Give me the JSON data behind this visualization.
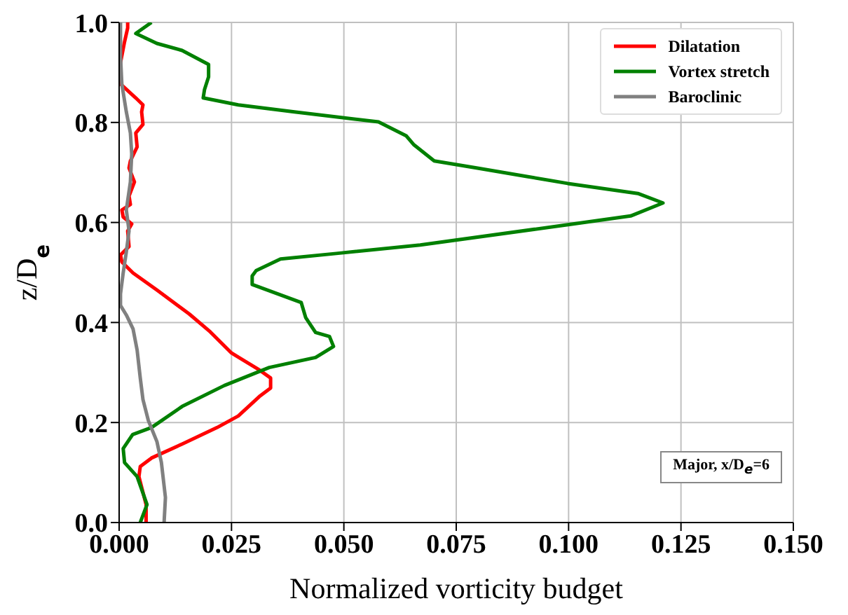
{
  "chart_data": {
    "type": "line",
    "xlabel": "Normalized vorticity budget",
    "ylabel": "z/D$_{e}$",
    "xlim": [
      0,
      0.15
    ],
    "ylim": [
      0,
      1
    ],
    "xticks": [
      {
        "value": 0,
        "label": "0.000"
      },
      0.025,
      {
        "value": 0.05,
        "label": "0.050"
      },
      0.075,
      {
        "value": 0.1,
        "label": "0.100"
      },
      0.125,
      {
        "value": 0.15,
        "label": "0.150"
      }
    ],
    "yticks": [
      {
        "value": 0,
        "label": "0.0"
      },
      0.2,
      0.4,
      0.6,
      0.8,
      {
        "value": 1,
        "label": "1.0"
      }
    ],
    "grid": true,
    "legend": "top right",
    "marker": "none",
    "line_style": "solid",
    "annotations": [
      "Major, x/D$_{e}$=6"
    ],
    "series": [
      {
        "name": "Dilatation",
        "color": "#ff0000",
        "x": [
          0.006,
          0.006,
          0.0044,
          0.0047,
          0.0072,
          0.014,
          0.0218,
          0.0265,
          0.0312,
          0.0337,
          0.0337,
          0.0312,
          0.025,
          0.0203,
          0.0156,
          0.0084,
          0.0031,
          0.0006,
          0.0003,
          0.0022,
          0.0019,
          0.0028,
          0.0009,
          0.0006,
          0.0025,
          0.0022,
          0.0034,
          0.0022,
          0.0025,
          0.004,
          0.0037,
          0.0053,
          0.005,
          0.0053,
          0.0037,
          0.0003,
          0.0003,
          0.0012,
          0.0019,
          0.0019
        ],
        "values": [
          0,
          0.036,
          0.092,
          0.112,
          0.129,
          0.157,
          0.19,
          0.213,
          0.252,
          0.269,
          0.289,
          0.305,
          0.339,
          0.381,
          0.417,
          0.465,
          0.499,
          0.521,
          0.535,
          0.552,
          0.583,
          0.597,
          0.611,
          0.625,
          0.636,
          0.653,
          0.681,
          0.709,
          0.723,
          0.751,
          0.779,
          0.796,
          0.821,
          0.835,
          0.849,
          0.877,
          0.919,
          0.961,
          0.989,
          1
        ]
      },
      {
        "name": "Vortex stretch",
        "color": "#008000",
        "x": [
          0.0047,
          0.0062,
          0.004,
          0.0012,
          0.0009,
          0.003,
          0.0072,
          0.014,
          0.0234,
          0.0334,
          0.0437,
          0.0477,
          0.0468,
          0.0437,
          0.0415,
          0.0405,
          0.0296,
          0.0296,
          0.0305,
          0.0359,
          0.0483,
          0.067,
          0.101,
          0.1138,
          0.121,
          0.1154,
          0.0998,
          0.0795,
          0.0701,
          0.0655,
          0.0639,
          0.0577,
          0.039,
          0.0265,
          0.0187,
          0.019,
          0.0199,
          0.0199,
          0.014,
          0.0084,
          0.0037,
          0.0072
        ],
        "values": [
          0,
          0.036,
          0.092,
          0.12,
          0.148,
          0.176,
          0.19,
          0.232,
          0.274,
          0.31,
          0.33,
          0.352,
          0.372,
          0.38,
          0.41,
          0.44,
          0.476,
          0.493,
          0.504,
          0.527,
          0.538,
          0.555,
          0.597,
          0.613,
          0.639,
          0.658,
          0.678,
          0.709,
          0.723,
          0.756,
          0.773,
          0.801,
          0.821,
          0.835,
          0.849,
          0.866,
          0.891,
          0.916,
          0.944,
          0.958,
          0.978,
          1
        ]
      },
      {
        "name": "Baroclinic",
        "color": "#808080",
        "x": [
          0.01,
          0.0103,
          0.0094,
          0.0084,
          0.0065,
          0.0053,
          0.0047,
          0.004,
          0.0031,
          0.0016,
          0.0003,
          0.0003,
          0.0009,
          0.0016,
          0.0022,
          0.0016,
          0.0025,
          0.0028,
          0.0025,
          0.0016,
          0.0006,
          0.0003,
          0.0003
        ],
        "values": [
          0,
          0.05,
          0.12,
          0.162,
          0.204,
          0.246,
          0.289,
          0.345,
          0.387,
          0.415,
          0.434,
          0.457,
          0.499,
          0.541,
          0.583,
          0.625,
          0.681,
          0.737,
          0.779,
          0.821,
          0.877,
          0.933,
          1
        ]
      }
    ]
  }
}
